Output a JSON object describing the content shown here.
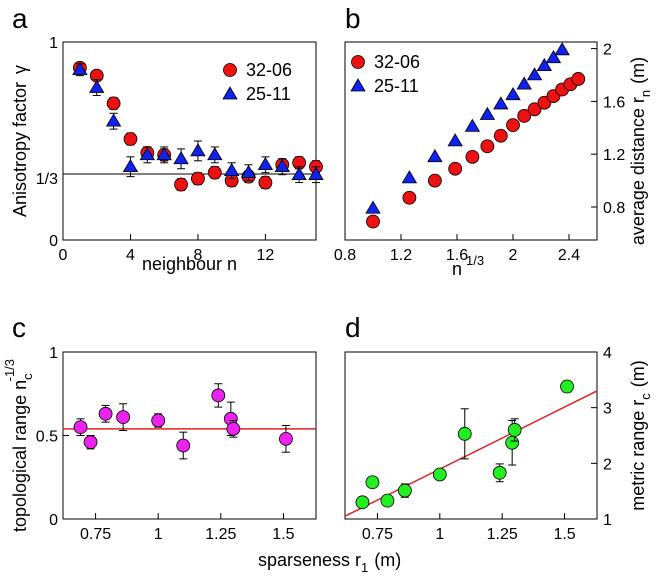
{
  "chart_data": [
    {
      "panel": "a",
      "type": "scatter",
      "xlabel": "neighbour n",
      "ylabel": "Anisotropy factor",
      "ylabel_symbol": "γ",
      "xlim": [
        0,
        15
      ],
      "ylim": [
        0,
        1
      ],
      "xticks": [
        {
          "v": 0,
          "label": "0"
        },
        {
          "v": 4,
          "label": "4"
        },
        {
          "v": 8,
          "label": "8"
        },
        {
          "v": 12,
          "label": "12"
        }
      ],
      "yticks": [
        {
          "v": 0,
          "label": "0"
        },
        {
          "v": 0.3333,
          "label": "1/3"
        },
        {
          "v": 1,
          "label": "1"
        }
      ],
      "hline": 0.3333,
      "legend": "top-right",
      "series": [
        {
          "name": "32-06",
          "marker": "circle",
          "color": "#ee1111",
          "x": [
            1,
            2,
            3,
            4,
            5,
            6,
            7,
            8,
            9,
            10,
            11,
            12,
            13,
            14,
            15
          ],
          "y": [
            0.87,
            0.83,
            0.69,
            0.51,
            0.44,
            0.43,
            0.28,
            0.31,
            0.34,
            0.3,
            0.32,
            0.29,
            0.38,
            0.39,
            0.37
          ],
          "err": [
            0.02,
            0.02,
            0.03,
            0.03,
            0.03,
            0.03,
            0.03,
            0.03,
            0.03,
            0.03,
            0.03,
            0.03,
            0.03,
            0.03,
            0.03
          ]
        },
        {
          "name": "25-11",
          "marker": "triangle",
          "color": "#1122ee",
          "x": [
            1,
            2,
            3,
            4,
            5,
            6,
            7,
            8,
            9,
            10,
            11,
            12,
            13,
            14,
            15
          ],
          "y": [
            0.86,
            0.77,
            0.6,
            0.37,
            0.43,
            0.43,
            0.41,
            0.45,
            0.43,
            0.35,
            0.34,
            0.38,
            0.37,
            0.33,
            0.33
          ],
          "err": [
            0.03,
            0.04,
            0.04,
            0.05,
            0.04,
            0.04,
            0.05,
            0.05,
            0.04,
            0.04,
            0.04,
            0.04,
            0.04,
            0.04,
            0.04
          ]
        }
      ]
    },
    {
      "panel": "b",
      "type": "scatter",
      "xlabel": "n",
      "xlabel_sup": "1/3",
      "ylabel": "average distance r",
      "ylabel_sub": "n",
      "ylabel_unit": "(m)",
      "xlim": [
        0.8,
        2.6
      ],
      "ylim": [
        0.55,
        2.05
      ],
      "xticks": [
        {
          "v": 0.8,
          "label": "0.8"
        },
        {
          "v": 1.2,
          "label": "1.2"
        },
        {
          "v": 1.6,
          "label": "1.6"
        },
        {
          "v": 2,
          "label": "2"
        },
        {
          "v": 2.4,
          "label": "2.4"
        }
      ],
      "yticks": [
        {
          "v": 0.8,
          "label": "0.8"
        },
        {
          "v": 1.2,
          "label": "1.2"
        },
        {
          "v": 1.6,
          "label": "1.6"
        },
        {
          "v": 2,
          "label": "2"
        }
      ],
      "yaxis_side": "right",
      "legend": "top-left",
      "series": [
        {
          "name": "32-06",
          "marker": "circle",
          "color": "#ee1111",
          "x": [
            1,
            1.26,
            1.442,
            1.587,
            1.71,
            1.817,
            1.913,
            2,
            2.08,
            2.154,
            2.224,
            2.289,
            2.351,
            2.41,
            2.466
          ],
          "y": [
            0.69,
            0.87,
            1,
            1.09,
            1.18,
            1.26,
            1.34,
            1.42,
            1.49,
            1.54,
            1.59,
            1.64,
            1.69,
            1.73,
            1.77
          ]
        },
        {
          "name": "25-11",
          "marker": "triangle",
          "color": "#1122ee",
          "x": [
            1,
            1.26,
            1.442,
            1.587,
            1.71,
            1.817,
            1.913,
            2,
            2.08,
            2.154,
            2.224,
            2.289,
            2.351
          ],
          "y": [
            0.79,
            1.02,
            1.18,
            1.3,
            1.41,
            1.5,
            1.58,
            1.65,
            1.73,
            1.8,
            1.87,
            1.93,
            1.99
          ]
        }
      ]
    },
    {
      "panel": "c",
      "type": "scatter",
      "xlabel": "sparseness r",
      "xlabel_sub": "1",
      "xlabel_unit": "(m)",
      "ylabel": "topological range  n",
      "ylabel_sub": "c",
      "ylabel_sup": "-1/3",
      "xlim": [
        0.62,
        1.63
      ],
      "ylim": [
        0,
        1
      ],
      "xticks": [
        {
          "v": 0.75,
          "label": "0.75"
        },
        {
          "v": 1,
          "label": "1"
        },
        {
          "v": 1.25,
          "label": "1.25"
        },
        {
          "v": 1.5,
          "label": "1.5"
        }
      ],
      "yticks": [
        {
          "v": 0,
          "label": "0"
        },
        {
          "v": 0.5,
          "label": "0.5"
        },
        {
          "v": 1,
          "label": "1"
        }
      ],
      "fit_line": {
        "x": [
          0.62,
          1.63
        ],
        "y": [
          0.54,
          0.54
        ],
        "color": "#dd2222"
      },
      "series": [
        {
          "name": "",
          "marker": "circle",
          "color": "#ee22ee",
          "x": [
            0.69,
            0.73,
            0.79,
            0.86,
            1.0,
            1.1,
            1.24,
            1.29,
            1.3,
            1.51
          ],
          "y": [
            0.55,
            0.46,
            0.63,
            0.61,
            0.59,
            0.44,
            0.74,
            0.6,
            0.54,
            0.48
          ],
          "err": [
            0.05,
            0.04,
            0.05,
            0.08,
            0.04,
            0.08,
            0.07,
            0.1,
            0.05,
            0.08
          ]
        }
      ]
    },
    {
      "panel": "d",
      "type": "scatter",
      "xlabel": "",
      "ylabel": "metric range r",
      "ylabel_sub": "c",
      "ylabel_unit": "(m)",
      "xlim": [
        0.62,
        1.63
      ],
      "ylim": [
        1,
        4
      ],
      "xticks": [
        {
          "v": 0.75,
          "label": "0.75"
        },
        {
          "v": 1,
          "label": "1"
        },
        {
          "v": 1.25,
          "label": "1.25"
        },
        {
          "v": 1.5,
          "label": "1.5"
        }
      ],
      "yticks": [
        {
          "v": 1,
          "label": "1"
        },
        {
          "v": 2,
          "label": "2"
        },
        {
          "v": 3,
          "label": "3"
        },
        {
          "v": 4,
          "label": "4"
        }
      ],
      "yaxis_side": "right",
      "fit_line": {
        "x": [
          0.62,
          1.63
        ],
        "y": [
          1.05,
          3.3
        ],
        "color": "#dd2222"
      },
      "series": [
        {
          "name": "",
          "marker": "circle",
          "color": "#22ee22",
          "x": [
            0.69,
            0.73,
            0.79,
            0.86,
            1.0,
            1.1,
            1.24,
            1.29,
            1.3,
            1.51
          ],
          "y": [
            1.3,
            1.66,
            1.33,
            1.51,
            1.8,
            2.53,
            1.83,
            2.37,
            2.6,
            3.38
          ],
          "err": [
            0.05,
            0.05,
            0.05,
            0.12,
            0.08,
            0.45,
            0.16,
            0.4,
            0.2,
            0.1
          ]
        }
      ]
    }
  ]
}
